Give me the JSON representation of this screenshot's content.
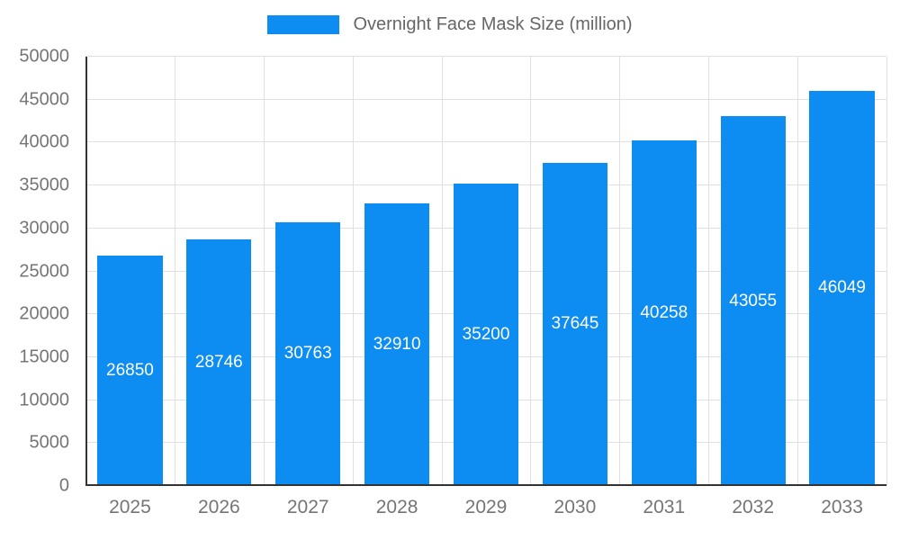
{
  "chart_data": {
    "type": "bar",
    "title": "Overnight Face Mask Size (million)",
    "categories": [
      "2025",
      "2026",
      "2027",
      "2028",
      "2029",
      "2030",
      "2031",
      "2032",
      "2033"
    ],
    "values": [
      26850,
      28746,
      30763,
      32910,
      35200,
      37645,
      40258,
      43055,
      46049
    ],
    "xlabel": "",
    "ylabel": "",
    "ylim": [
      0,
      50000
    ],
    "ytick_step": 5000,
    "grid": true,
    "legend_position": "top",
    "bar_color": "#0d8df2",
    "value_label_color": "#ffffff",
    "axis_text_color": "#757575",
    "title_color": "#666666",
    "gridline_color": "#e0e0e0",
    "axis_line_color": "#333333"
  }
}
